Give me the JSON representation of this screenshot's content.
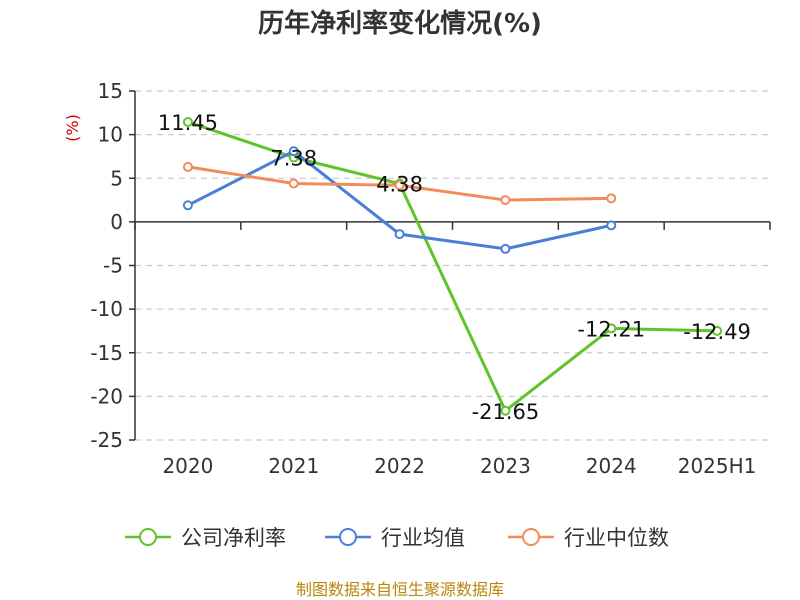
{
  "chart_data": {
    "type": "line",
    "title": "历年净利率变化情况(%)",
    "ylabel": "(%)",
    "categories": [
      "2020",
      "2021",
      "2022",
      "2023",
      "2024",
      "2025H1"
    ],
    "yticks": [
      "15",
      "10",
      "5",
      "0",
      "-5",
      "-10",
      "-15",
      "-20",
      "-25"
    ],
    "ylim": [
      -25,
      15
    ],
    "grid": true,
    "legend_position": "bottom",
    "series": [
      {
        "name": "公司净利率",
        "color": "#5ec42a",
        "values": [
          11.45,
          7.38,
          4.38,
          -21.65,
          -12.21,
          -12.49
        ],
        "labels": [
          "11.45",
          "7.38",
          "4.38",
          "-21.65",
          "-12.21",
          "-12.49"
        ]
      },
      {
        "name": "行业均值",
        "color": "#4a7fd9",
        "values": [
          1.9,
          8.1,
          -1.4,
          -3.1,
          -0.4,
          null
        ]
      },
      {
        "name": "行业中位数",
        "color": "#f28c5a",
        "values": [
          6.3,
          4.4,
          4.2,
          2.5,
          2.7,
          null
        ]
      }
    ]
  },
  "source": "制图数据来自恒生聚源数据库"
}
